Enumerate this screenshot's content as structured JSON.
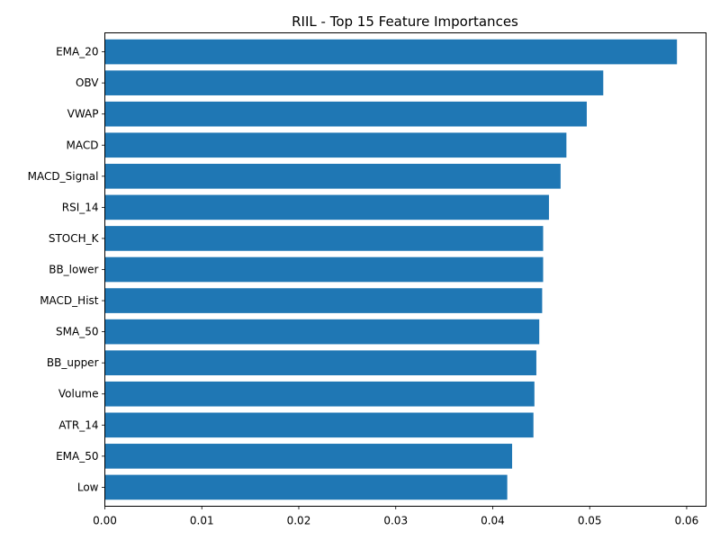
{
  "chart_data": {
    "type": "bar",
    "orientation": "horizontal",
    "title": "RIIL - Top 15 Feature Importances",
    "xlabel": "",
    "ylabel": "",
    "categories": [
      "EMA_20",
      "OBV",
      "VWAP",
      "MACD",
      "MACD_Signal",
      "RSI_14",
      "STOCH_K",
      "BB_lower",
      "MACD_Hist",
      "SMA_50",
      "BB_upper",
      "Volume",
      "ATR_14",
      "EMA_50",
      "Low"
    ],
    "values": [
      0.059,
      0.0514,
      0.0497,
      0.0476,
      0.047,
      0.0458,
      0.0452,
      0.0452,
      0.0451,
      0.0448,
      0.0445,
      0.0443,
      0.0442,
      0.042,
      0.0415
    ],
    "xlim": [
      0.0,
      0.062
    ],
    "xticks": [
      "0.00",
      "0.01",
      "0.02",
      "0.03",
      "0.04",
      "0.05",
      "0.06"
    ],
    "grid": false,
    "legend": "none",
    "bar_color": "#1f77b4"
  }
}
